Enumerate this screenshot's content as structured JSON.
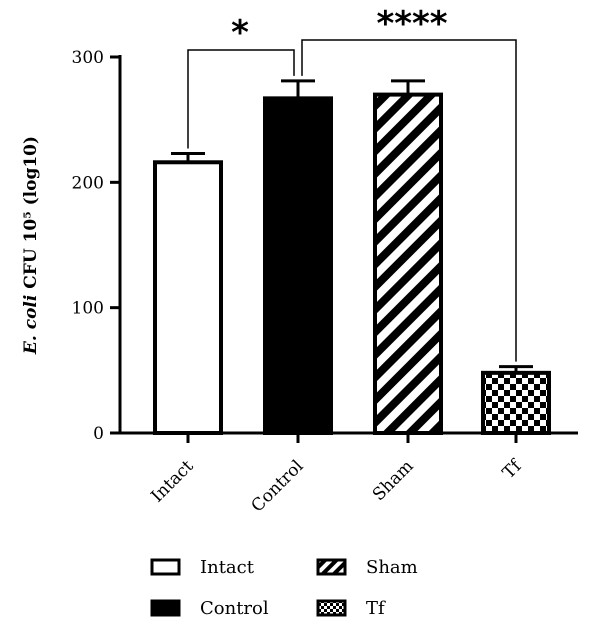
{
  "chart_data": {
    "type": "bar",
    "categories": [
      "Intact",
      "Control",
      "Sham",
      "Tf"
    ],
    "values": [
      216,
      267,
      270,
      48
    ],
    "errors": [
      7,
      14,
      11,
      5
    ],
    "patterns": [
      "white",
      "black",
      "diagonal-stripes",
      "checkerboard"
    ],
    "ylabel_italic": "E. coli",
    "ylabel_rest": " CFU 10⁵ (log10)",
    "ylim": [
      0,
      300
    ],
    "yticks": [
      "0",
      "100",
      "200",
      "300"
    ],
    "significance": [
      {
        "from": "Intact",
        "to": "Control",
        "label": "*"
      },
      {
        "from": "Control",
        "to": "Tf",
        "label": "****"
      }
    ],
    "legend": [
      "Intact",
      "Control",
      "Sham",
      "Tf"
    ],
    "legend_position": "bottom"
  }
}
